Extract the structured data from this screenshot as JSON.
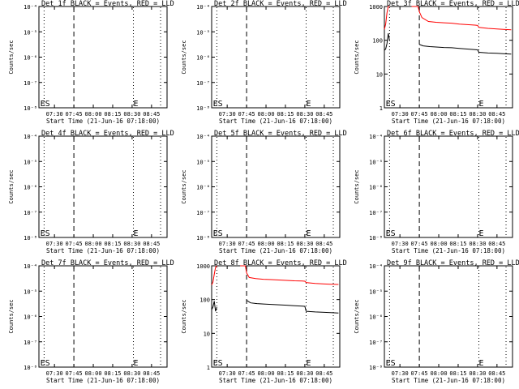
{
  "colors": {
    "events": "#000000",
    "lld": "#ff0000",
    "background": "#ffffff"
  },
  "chart_data": [
    {
      "type": "line",
      "title": "Det 1f BLACK = Events, RED = LLD",
      "ylabel": "Counts/sec",
      "xlabel": "Start Time (21-Jun-16 07:18:00)",
      "xlim": [
        "07:18",
        "08:57"
      ],
      "xticks": [
        "07:30",
        "07:45",
        "08:00",
        "08:15",
        "08:30",
        "08:45"
      ],
      "yscale": "log",
      "ylim": [
        1e-08,
        0.0001
      ],
      "yticks": [
        "10^-4",
        "10^-5",
        "10^-6",
        "10^-7",
        "10^-8"
      ],
      "markers": [
        {
          "time": "07:22",
          "style": "dotted"
        },
        {
          "time": "07:45",
          "style": "dashed"
        },
        {
          "time": "08:31",
          "style": "dotted"
        },
        {
          "time": "08:52",
          "style": "dotted"
        }
      ],
      "labels": [
        {
          "text": "ES",
          "time": "07:19"
        },
        {
          "text": "E",
          "time": "08:31"
        }
      ],
      "series": []
    },
    {
      "type": "line",
      "title": "Det 2f BLACK = Events, RED = LLD",
      "ylabel": "Counts/sec",
      "xlabel": "Start Time (21-Jun-16 07:18:00)",
      "xlim": [
        "07:18",
        "08:57"
      ],
      "xticks": [
        "07:30",
        "07:45",
        "08:00",
        "08:15",
        "08:30",
        "08:45"
      ],
      "yscale": "log",
      "ylim": [
        1e-08,
        0.0001
      ],
      "yticks": [
        "10^-4",
        "10^-5",
        "10^-6",
        "10^-7",
        "10^-8"
      ],
      "markers": [
        {
          "time": "07:22",
          "style": "dotted"
        },
        {
          "time": "07:45",
          "style": "dashed"
        },
        {
          "time": "08:31",
          "style": "dotted"
        },
        {
          "time": "08:52",
          "style": "dotted"
        }
      ],
      "labels": [
        {
          "text": "ES",
          "time": "07:19"
        },
        {
          "text": "E",
          "time": "08:31"
        }
      ],
      "series": []
    },
    {
      "type": "line",
      "title": "Det 3f BLACK = Events, RED = LLD",
      "ylabel": "Counts/sec",
      "xlabel": "Start Time (21-Jun-16 07:18:00)",
      "xlim": [
        "07:18",
        "08:57"
      ],
      "xticks": [
        "07:30",
        "07:45",
        "08:00",
        "08:15",
        "08:30",
        "08:45"
      ],
      "yscale": "log",
      "ylim": [
        1,
        1000
      ],
      "yticks": [
        "1000",
        "100",
        "10",
        "1"
      ],
      "markers": [
        {
          "time": "07:22",
          "style": "dotted"
        },
        {
          "time": "07:45",
          "style": "dashed"
        },
        {
          "time": "08:31",
          "style": "dotted"
        },
        {
          "time": "08:52",
          "style": "dotted"
        }
      ],
      "labels": [
        {
          "text": "ES",
          "time": "07:19"
        },
        {
          "text": "E",
          "time": "08:31"
        }
      ],
      "series": [
        {
          "color": "#ff0000",
          "segments": [
            [
              [
                "07:18",
                210
              ],
              [
                "07:19",
                300
              ],
              [
                "07:20",
                650
              ],
              [
                "07:21",
                1000
              ],
              [
                "07:22",
                1000
              ]
            ],
            [
              [
                "07:39",
                1000
              ],
              [
                "07:44",
                1000
              ],
              [
                "07:45",
                700
              ],
              [
                "07:47",
                470
              ],
              [
                "07:52",
                360
              ],
              [
                "07:58",
                340
              ],
              [
                "08:04",
                330
              ],
              [
                "08:10",
                320
              ],
              [
                "08:16",
                300
              ],
              [
                "08:22",
                290
              ],
              [
                "08:28",
                280
              ],
              [
                "08:30",
                275
              ],
              [
                "08:31",
                240
              ],
              [
                "08:38",
                225
              ],
              [
                "08:45",
                215
              ],
              [
                "08:50",
                210
              ],
              [
                "08:56",
                205
              ]
            ]
          ]
        },
        {
          "color": "#000000",
          "segments": [
            [
              [
                "07:18",
                50
              ],
              [
                "07:19",
                55
              ],
              [
                "07:20",
                80
              ],
              [
                "07:21",
                160
              ],
              [
                "07:22",
                95
              ]
            ],
            [
              [
                "07:45",
                75
              ],
              [
                "07:48",
                68
              ],
              [
                "07:53",
                65
              ],
              [
                "07:58",
                63
              ],
              [
                "08:04",
                61
              ],
              [
                "08:10",
                60
              ],
              [
                "08:16",
                57
              ],
              [
                "08:22",
                55
              ],
              [
                "08:28",
                53
              ],
              [
                "08:30",
                52
              ],
              [
                "08:31",
                44
              ],
              [
                "08:38",
                42
              ],
              [
                "08:45",
                41
              ],
              [
                "08:50",
                40
              ],
              [
                "08:56",
                39
              ]
            ]
          ]
        }
      ]
    },
    {
      "type": "line",
      "title": "Det 4f BLACK = Events, RED = LLD",
      "ylabel": "Counts/sec",
      "xlabel": "Start Time (21-Jun-16 07:18:00)",
      "xlim": [
        "07:18",
        "08:57"
      ],
      "xticks": [
        "07:30",
        "07:45",
        "08:00",
        "08:15",
        "08:30",
        "08:45"
      ],
      "yscale": "log",
      "ylim": [
        1e-08,
        0.0001
      ],
      "yticks": [
        "10^-4",
        "10^-5",
        "10^-6",
        "10^-7",
        "10^-8"
      ],
      "markers": [
        {
          "time": "07:22",
          "style": "dotted"
        },
        {
          "time": "07:45",
          "style": "dashed"
        },
        {
          "time": "08:31",
          "style": "dotted"
        },
        {
          "time": "08:52",
          "style": "dotted"
        }
      ],
      "labels": [
        {
          "text": "ES",
          "time": "07:19"
        },
        {
          "text": "E",
          "time": "08:31"
        }
      ],
      "series": []
    },
    {
      "type": "line",
      "title": "Det 5f BLACK = Events, RED = LLD",
      "ylabel": "Counts/sec",
      "xlabel": "Start Time (21-Jun-16 07:18:00)",
      "xlim": [
        "07:18",
        "08:57"
      ],
      "xticks": [
        "07:30",
        "07:45",
        "08:00",
        "08:15",
        "08:30",
        "08:45"
      ],
      "yscale": "log",
      "ylim": [
        1e-08,
        0.0001
      ],
      "yticks": [
        "10^-4",
        "10^-5",
        "10^-6",
        "10^-7",
        "10^-8"
      ],
      "markers": [
        {
          "time": "07:22",
          "style": "dotted"
        },
        {
          "time": "07:45",
          "style": "dashed"
        },
        {
          "time": "08:31",
          "style": "dotted"
        },
        {
          "time": "08:52",
          "style": "dotted"
        }
      ],
      "labels": [
        {
          "text": "ES",
          "time": "07:19"
        },
        {
          "text": "E",
          "time": "08:31"
        }
      ],
      "series": []
    },
    {
      "type": "line",
      "title": "Det 6f BLACK = Events, RED = LLD",
      "ylabel": "Counts/sec",
      "xlabel": "Start Time (21-Jun-16 07:18:00)",
      "xlim": [
        "07:18",
        "08:57"
      ],
      "xticks": [
        "07:30",
        "07:45",
        "08:00",
        "08:15",
        "08:30",
        "08:45"
      ],
      "yscale": "log",
      "ylim": [
        1e-08,
        0.0001
      ],
      "yticks": [
        "10^-4",
        "10^-5",
        "10^-6",
        "10^-7",
        "10^-8"
      ],
      "markers": [
        {
          "time": "07:22",
          "style": "dotted"
        },
        {
          "time": "07:45",
          "style": "dashed"
        },
        {
          "time": "08:31",
          "style": "dotted"
        },
        {
          "time": "08:52",
          "style": "dotted"
        }
      ],
      "labels": [
        {
          "text": "ES",
          "time": "07:19"
        },
        {
          "text": "E",
          "time": "08:31"
        }
      ],
      "series": []
    },
    {
      "type": "line",
      "title": "Det 7f BLACK = Events, RED = LLD",
      "ylabel": "Counts/sec",
      "xlabel": "Start Time (21-Jun-16 07:18:00)",
      "xlim": [
        "07:18",
        "08:57"
      ],
      "xticks": [
        "07:30",
        "07:45",
        "08:00",
        "08:15",
        "08:30",
        "08:45"
      ],
      "yscale": "log",
      "ylim": [
        1e-08,
        0.0001
      ],
      "yticks": [
        "10^-4",
        "10^-5",
        "10^-6",
        "10^-7",
        "10^-8"
      ],
      "markers": [
        {
          "time": "07:22",
          "style": "dotted"
        },
        {
          "time": "07:45",
          "style": "dashed"
        },
        {
          "time": "08:31",
          "style": "dotted"
        },
        {
          "time": "08:52",
          "style": "dotted"
        }
      ],
      "labels": [
        {
          "text": "ES",
          "time": "07:19"
        },
        {
          "text": "E",
          "time": "08:31"
        }
      ],
      "series": []
    },
    {
      "type": "line",
      "title": "Det 8f BLACK = Events, RED = LLD",
      "ylabel": "Counts/sec",
      "xlabel": "Start Time (21-Jun-16 07:18:00)",
      "xlim": [
        "07:18",
        "08:57"
      ],
      "xticks": [
        "07:30",
        "07:45",
        "08:00",
        "08:15",
        "08:30",
        "08:45"
      ],
      "yscale": "log",
      "ylim": [
        1,
        1000
      ],
      "yticks": [
        "1000",
        "100",
        "10",
        "1"
      ],
      "markers": [
        {
          "time": "07:22",
          "style": "dotted"
        },
        {
          "time": "07:45",
          "style": "dashed"
        },
        {
          "time": "08:31",
          "style": "dotted"
        },
        {
          "time": "08:52",
          "style": "dotted"
        }
      ],
      "labels": [
        {
          "text": "ES",
          "time": "07:19"
        },
        {
          "text": "E",
          "time": "08:31"
        }
      ],
      "series": [
        {
          "color": "#ff0000",
          "segments": [
            [
              [
                "07:18",
                270
              ],
              [
                "07:19",
                330
              ],
              [
                "07:20",
                560
              ],
              [
                "07:21",
                900
              ],
              [
                "07:22",
                1000
              ]
            ],
            [
              [
                "07:40",
                1000
              ],
              [
                "07:44",
                1000
              ],
              [
                "07:45",
                620
              ],
              [
                "07:47",
                450
              ],
              [
                "07:52",
                420
              ],
              [
                "07:58",
                400
              ],
              [
                "08:04",
                390
              ],
              [
                "08:10",
                380
              ],
              [
                "08:16",
                370
              ],
              [
                "08:22",
                360
              ],
              [
                "08:28",
                355
              ],
              [
                "08:30",
                350
              ],
              [
                "08:31",
                320
              ],
              [
                "08:38",
                300
              ],
              [
                "08:45",
                290
              ],
              [
                "08:50",
                285
              ],
              [
                "08:56",
                280
              ]
            ]
          ]
        },
        {
          "color": "#000000",
          "segments": [
            [
              [
                "07:18",
                50
              ],
              [
                "07:19",
                60
              ],
              [
                "07:20",
                90
              ],
              [
                "07:21",
                45
              ],
              [
                "07:22",
                60
              ]
            ],
            [
              [
                "07:45",
                95
              ],
              [
                "07:48",
                80
              ],
              [
                "07:53",
                76
              ],
              [
                "07:58",
                74
              ],
              [
                "08:04",
                72
              ],
              [
                "08:10",
                70
              ],
              [
                "08:16",
                68
              ],
              [
                "08:22",
                66
              ],
              [
                "08:28",
                64
              ],
              [
                "08:30",
                63
              ],
              [
                "08:31",
                45
              ],
              [
                "08:38",
                43
              ],
              [
                "08:45",
                42
              ],
              [
                "08:50",
                41
              ],
              [
                "08:56",
                40
              ]
            ]
          ]
        }
      ]
    },
    {
      "type": "line",
      "title": "Det 9f BLACK = Events, RED = LLD",
      "ylabel": "Counts/sec",
      "xlabel": "Start Time (21-Jun-16 07:18:00)",
      "xlim": [
        "07:18",
        "08:57"
      ],
      "xticks": [
        "07:30",
        "07:45",
        "08:00",
        "08:15",
        "08:30",
        "08:45"
      ],
      "yscale": "log",
      "ylim": [
        1e-08,
        0.0001
      ],
      "yticks": [
        "10^-4",
        "10^-5",
        "10^-6",
        "10^-7",
        "10^-8"
      ],
      "markers": [
        {
          "time": "07:22",
          "style": "dotted"
        },
        {
          "time": "07:45",
          "style": "dashed"
        },
        {
          "time": "08:31",
          "style": "dotted"
        },
        {
          "time": "08:52",
          "style": "dotted"
        }
      ],
      "labels": [
        {
          "text": "ES",
          "time": "07:19"
        },
        {
          "text": "E",
          "time": "08:31"
        }
      ],
      "series": []
    }
  ]
}
